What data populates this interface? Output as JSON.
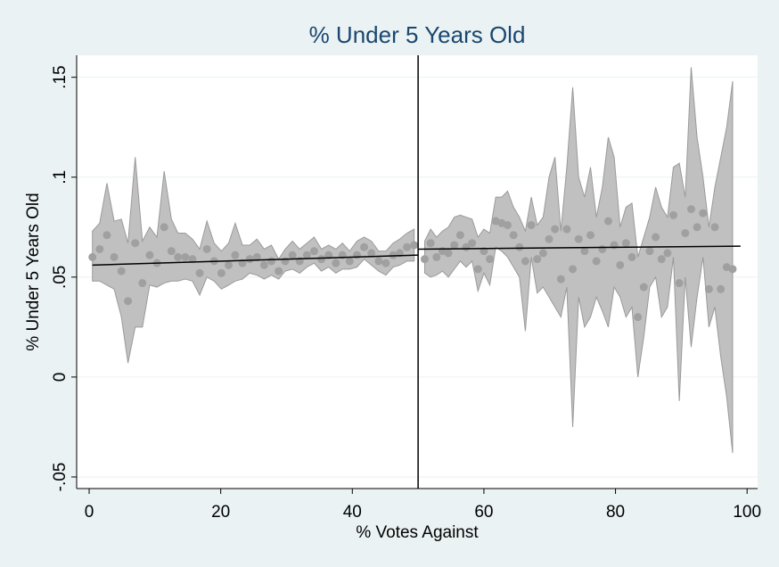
{
  "chart_data": {
    "type": "scatter",
    "title": "% Under 5 Years Old",
    "xlabel": "% Votes Against",
    "ylabel": "% Under 5 Years Old",
    "xlim": [
      -1.9,
      101.6
    ],
    "ylim": [
      -0.0558,
      0.161
    ],
    "xticks": [
      0,
      20,
      40,
      60,
      80,
      100
    ],
    "yticks": [
      {
        "value": -0.05,
        "label": "-.05"
      },
      0,
      {
        "value": 0.05,
        "label": ".05"
      },
      {
        "value": 0.1,
        "label": ".1"
      },
      {
        "value": 0.15,
        "label": ".15"
      }
    ],
    "grid": true,
    "cutoff": 50,
    "bands": [
      {
        "color": "#c0c0c0",
        "x": [
          0.5,
          1.6,
          2.7,
          3.8,
          4.9,
          5.9,
          7.0,
          8.1,
          9.2,
          10.3,
          11.4,
          12.5,
          13.5,
          14.6,
          15.7,
          16.8,
          17.9,
          19.0,
          20.1,
          21.2,
          22.2,
          23.3,
          24.4,
          25.5,
          26.6,
          27.7,
          28.8,
          29.8,
          30.9,
          32.0,
          33.1,
          34.2,
          35.3,
          36.4,
          37.5,
          38.5,
          39.6,
          40.7,
          41.8,
          42.9,
          44.0,
          45.1,
          46.2,
          47.2,
          48.3,
          49.4
        ],
        "upper": [
          0.073,
          0.077,
          0.097,
          0.078,
          0.079,
          0.067,
          0.11,
          0.068,
          0.075,
          0.07,
          0.103,
          0.079,
          0.072,
          0.072,
          0.069,
          0.064,
          0.078,
          0.067,
          0.063,
          0.067,
          0.077,
          0.066,
          0.066,
          0.069,
          0.064,
          0.066,
          0.059,
          0.064,
          0.068,
          0.064,
          0.067,
          0.07,
          0.064,
          0.066,
          0.064,
          0.067,
          0.063,
          0.068,
          0.07,
          0.068,
          0.063,
          0.063,
          0.067,
          0.069,
          0.072,
          0.074
        ],
        "lower": [
          0.048,
          0.048,
          0.046,
          0.044,
          0.03,
          0.007,
          0.025,
          0.025,
          0.046,
          0.045,
          0.047,
          0.048,
          0.048,
          0.049,
          0.048,
          0.041,
          0.05,
          0.048,
          0.044,
          0.046,
          0.048,
          0.049,
          0.052,
          0.051,
          0.049,
          0.051,
          0.049,
          0.053,
          0.054,
          0.052,
          0.055,
          0.057,
          0.053,
          0.055,
          0.052,
          0.054,
          0.054,
          0.055,
          0.059,
          0.056,
          0.053,
          0.051,
          0.055,
          0.056,
          0.058,
          0.058
        ]
      },
      {
        "color": "#c0c0c0",
        "x": [
          51,
          51.9,
          52.8,
          53.7,
          54.6,
          55.5,
          56.4,
          57.3,
          58.2,
          59.1,
          60,
          60.9,
          61.8,
          62.7,
          63.6,
          64.5,
          65.4,
          66.3,
          67.2,
          68.1,
          69,
          69.9,
          70.8,
          71.7,
          72.6,
          73.5,
          74.4,
          75.3,
          76.2,
          77.1,
          78,
          78.9,
          79.8,
          80.7,
          81.6,
          82.5,
          83.4,
          84.3,
          85.2,
          86.1,
          87,
          87.9,
          88.8,
          89.7,
          90.6,
          91.5,
          92.4,
          93.3,
          94.2,
          95.1,
          96,
          96.9,
          97.8
        ],
        "upper": [
          0.068,
          0.074,
          0.07,
          0.073,
          0.075,
          0.08,
          0.081,
          0.08,
          0.079,
          0.07,
          0.074,
          0.072,
          0.09,
          0.09,
          0.093,
          0.085,
          0.08,
          0.073,
          0.09,
          0.076,
          0.08,
          0.1,
          0.11,
          0.073,
          0.105,
          0.145,
          0.1,
          0.09,
          0.105,
          0.08,
          0.095,
          0.12,
          0.11,
          0.075,
          0.085,
          0.087,
          0.06,
          0.07,
          0.08,
          0.095,
          0.085,
          0.08,
          0.105,
          0.107,
          0.09,
          0.155,
          0.12,
          0.1,
          0.075,
          0.095,
          0.11,
          0.125,
          0.148
        ],
        "lower": [
          0.052,
          0.05,
          0.051,
          0.053,
          0.05,
          0.054,
          0.058,
          0.055,
          0.058,
          0.043,
          0.052,
          0.046,
          0.065,
          0.063,
          0.06,
          0.055,
          0.05,
          0.023,
          0.06,
          0.042,
          0.045,
          0.04,
          0.035,
          0.03,
          0.045,
          -0.025,
          0.04,
          0.025,
          0.03,
          0.04,
          0.033,
          0.025,
          0.045,
          0.04,
          0.03,
          0.035,
          0.0,
          0.02,
          0.045,
          0.05,
          0.03,
          0.035,
          0.06,
          -0.012,
          0.05,
          0.015,
          0.04,
          0.06,
          0.025,
          0.035,
          0.01,
          -0.01,
          -0.038
        ]
      }
    ],
    "series": [
      {
        "color": "#a0a0a0",
        "x": [
          0.5,
          1.6,
          2.7,
          3.8,
          4.9,
          5.9,
          7.0,
          8.1,
          9.2,
          10.3,
          11.4,
          12.5,
          13.5,
          14.6,
          15.7,
          16.8,
          17.9,
          19.0,
          20.1,
          21.2,
          22.2,
          23.3,
          24.4,
          25.5,
          26.6,
          27.7,
          28.8,
          29.8,
          30.9,
          32.0,
          33.1,
          34.2,
          35.3,
          36.4,
          37.5,
          38.5,
          39.6,
          40.7,
          41.8,
          42.9,
          44.0,
          45.1,
          46.2,
          47.2,
          48.3,
          49.4
        ],
        "values": [
          0.06,
          0.064,
          0.071,
          0.06,
          0.053,
          0.038,
          0.067,
          0.047,
          0.061,
          0.057,
          0.075,
          0.063,
          0.06,
          0.06,
          0.059,
          0.052,
          0.064,
          0.058,
          0.052,
          0.056,
          0.061,
          0.057,
          0.059,
          0.06,
          0.056,
          0.058,
          0.053,
          0.058,
          0.061,
          0.058,
          0.061,
          0.063,
          0.059,
          0.061,
          0.057,
          0.061,
          0.058,
          0.061,
          0.065,
          0.062,
          0.058,
          0.057,
          0.061,
          0.062,
          0.065,
          0.066
        ]
      },
      {
        "color": "#a0a0a0",
        "x": [
          51,
          51.9,
          52.8,
          53.7,
          54.6,
          55.5,
          56.4,
          57.3,
          58.2,
          59.1,
          60,
          60.9,
          61.8,
          62.7,
          63.6,
          64.5,
          65.4,
          66.3,
          67.2,
          68.1,
          69,
          69.9,
          70.8,
          71.7,
          72.6,
          73.5,
          74.4,
          75.3,
          76.2,
          77.1,
          78,
          78.9,
          79.8,
          80.7,
          81.6,
          82.5,
          83.4,
          84.3,
          85.2,
          86.1,
          87,
          87.9,
          88.8,
          89.7,
          90.6,
          91.5,
          92.4,
          93.3,
          94.2,
          95.1,
          96,
          96.9,
          97.8
        ],
        "values": [
          0.059,
          0.067,
          0.06,
          0.063,
          0.062,
          0.066,
          0.071,
          0.065,
          0.067,
          0.054,
          0.063,
          0.059,
          0.078,
          0.077,
          0.076,
          0.071,
          0.065,
          0.058,
          0.076,
          0.059,
          0.062,
          0.069,
          0.074,
          0.049,
          0.074,
          0.054,
          0.069,
          0.063,
          0.071,
          0.058,
          0.064,
          0.078,
          0.066,
          0.056,
          0.067,
          0.06,
          0.03,
          0.045,
          0.063,
          0.07,
          0.059,
          0.062,
          0.081,
          0.047,
          0.072,
          0.084,
          0.075,
          0.082,
          0.044,
          0.075,
          0.044,
          0.055,
          0.054
        ]
      }
    ],
    "fits": [
      {
        "color": "#000000",
        "x": [
          0.5,
          50
        ],
        "values": [
          0.056,
          0.061
        ]
      },
      {
        "color": "#000000",
        "x": [
          50,
          99
        ],
        "values": [
          0.064,
          0.0655
        ]
      }
    ]
  }
}
